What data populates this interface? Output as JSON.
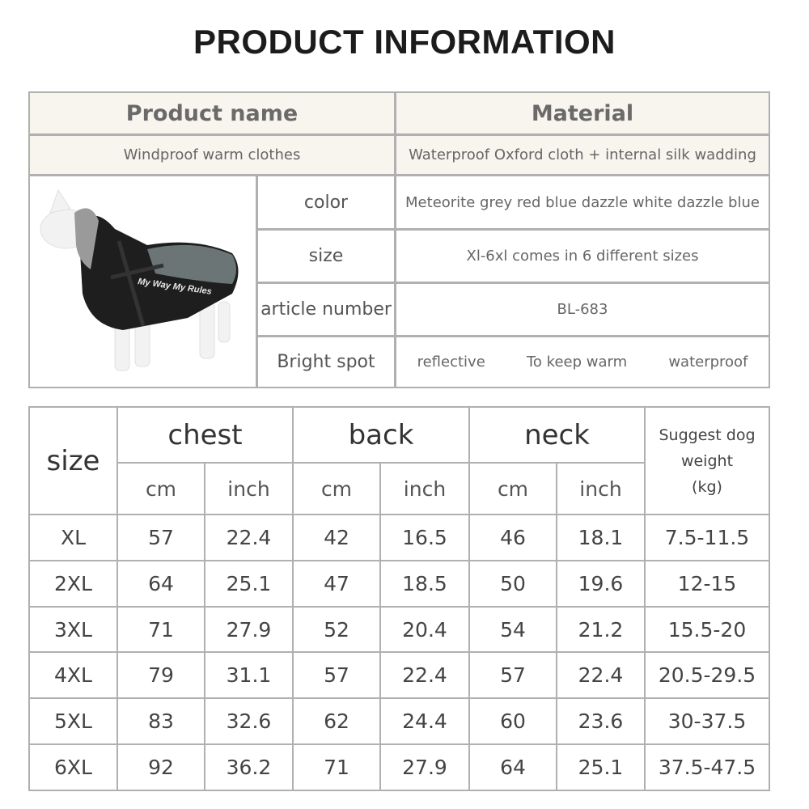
{
  "title": "PRODUCT INFORMATION",
  "info": {
    "product_name_label": "Product name",
    "material_label": "Material",
    "product_name": "Windproof warm clothes",
    "material": "Waterproof Oxford cloth + internal silk wadding",
    "rows": [
      {
        "label": "color",
        "value": "Meteorite grey red blue dazzle white dazzle blue"
      },
      {
        "label": "size",
        "value": "Xl-6xl comes in 6 different sizes"
      },
      {
        "label": "article number",
        "value": "BL-683"
      }
    ],
    "bright_spot_label": "Bright spot",
    "bright_spots": [
      "reflective",
      "To keep warm",
      "waterproof"
    ],
    "image": {
      "subject": "dog-coat-photo",
      "coat_colors": [
        "#1e1e1e",
        "#6b7575"
      ],
      "coat_lettering": "My Way My Rules"
    }
  },
  "sizes": {
    "size_label": "size",
    "groups": [
      "chest",
      "back",
      "neck"
    ],
    "units": [
      "cm",
      "inch"
    ],
    "weight_label": [
      "Suggest dog",
      "weight",
      "(kg)"
    ],
    "rows": [
      [
        "XL",
        "57",
        "22.4",
        "42",
        "16.5",
        "46",
        "18.1",
        "7.5-11.5"
      ],
      [
        "2XL",
        "64",
        "25.1",
        "47",
        "18.5",
        "50",
        "19.6",
        "12-15"
      ],
      [
        "3XL",
        "71",
        "27.9",
        "52",
        "20.4",
        "54",
        "21.2",
        "15.5-20"
      ],
      [
        "4XL",
        "79",
        "31.1",
        "57",
        "22.4",
        "57",
        "22.4",
        "20.5-29.5"
      ],
      [
        "5XL",
        "83",
        "32.6",
        "62",
        "24.4",
        "60",
        "23.6",
        "30-37.5"
      ],
      [
        "6XL",
        "92",
        "36.2",
        "71",
        "27.9",
        "64",
        "25.1",
        "37.5-47.5"
      ]
    ]
  }
}
